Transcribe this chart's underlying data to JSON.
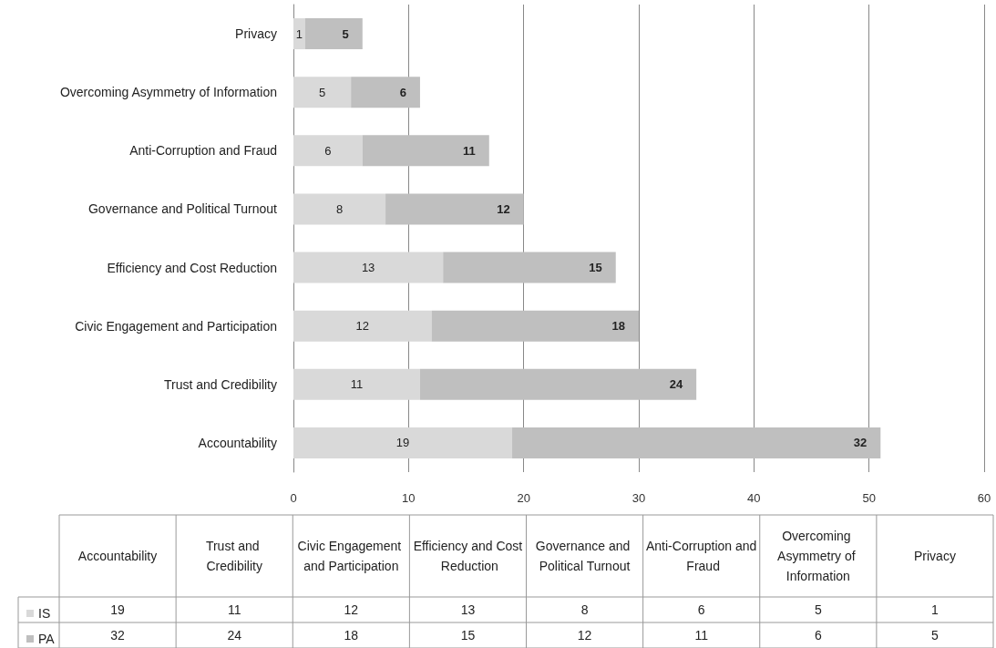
{
  "chart_data": {
    "type": "bar",
    "orientation": "horizontal",
    "stacked": true,
    "categories": [
      "Privacy",
      "Overcoming Asymmetry of Information",
      "Anti-Corruption and Fraud",
      "Governance and Political Turnout",
      "Efficiency and Cost Reduction",
      "Civic Engagement and Participation",
      "Trust and Credibility",
      "Accountability"
    ],
    "series": [
      {
        "name": "IS",
        "color": "#d9d9d9",
        "values": [
          1,
          5,
          6,
          8,
          13,
          12,
          11,
          19
        ],
        "value_labels": [
          "1",
          "5",
          "6",
          "8",
          "13",
          "12",
          "11",
          "19"
        ]
      },
      {
        "name": "PA",
        "color": "#bfbfbf",
        "values": [
          5,
          6,
          11,
          12,
          15,
          18,
          24,
          32
        ],
        "value_labels": [
          "5",
          "6",
          "11",
          "12",
          "15",
          "18",
          "24",
          "32"
        ]
      }
    ],
    "xlim": [
      0,
      60
    ],
    "xticks": [
      0,
      10,
      20,
      30,
      40,
      50,
      60
    ],
    "grid": "x",
    "legend": "bottom",
    "data_labels": true
  }
}
